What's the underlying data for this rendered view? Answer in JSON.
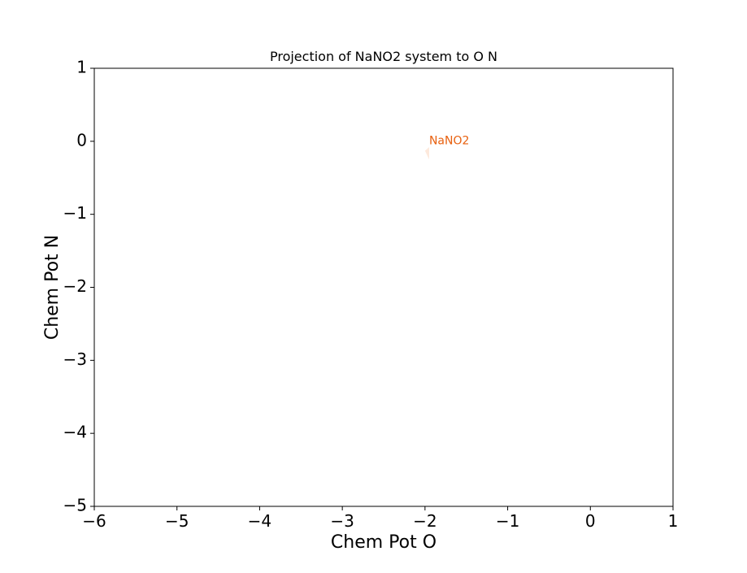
{
  "chart_data": {
    "type": "area",
    "title": "Projection of NaNO2 system to O N",
    "xlabel": "Chem Pot O",
    "ylabel": "Chem Pot N",
    "xlim": [
      -6,
      1
    ],
    "ylim": [
      -5,
      1
    ],
    "xticks": [
      -6,
      -5,
      -4,
      -3,
      -2,
      -1,
      0,
      1
    ],
    "yticks": [
      -5,
      -4,
      -3,
      -2,
      -1,
      0,
      1
    ],
    "xtick_labels": [
      "−6",
      "−5",
      "−4",
      "−3",
      "−2",
      "−1",
      "0",
      "1"
    ],
    "ytick_labels": [
      "−5",
      "−4",
      "−3",
      "−2",
      "−1",
      "0",
      "1"
    ],
    "grid": false,
    "regions": [
      {
        "name": "NaNO2",
        "label": "NaNO2",
        "polygon": [
          [
            -1.95,
            -0.08
          ],
          [
            -2.0,
            -0.13
          ],
          [
            -1.95,
            -0.25
          ]
        ],
        "label_at": [
          -1.95,
          -0.04
        ],
        "fill_color": "#fde9dc",
        "label_color": "#e8600f"
      }
    ]
  }
}
